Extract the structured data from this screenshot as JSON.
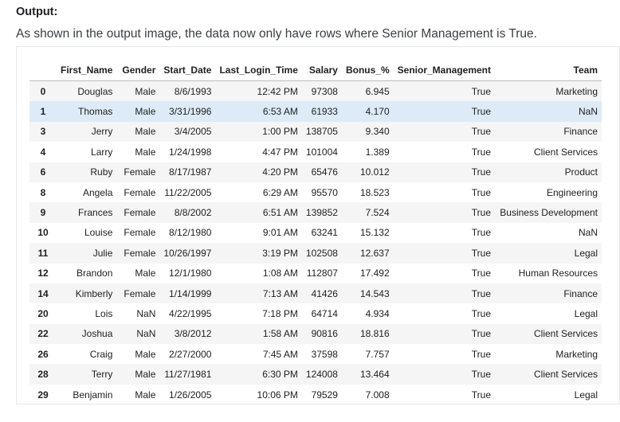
{
  "heading": "Output:",
  "description": "As shown in the output image, the data now only have rows where Senior Management is True.",
  "table": {
    "columns": [
      "",
      "First_Name",
      "Gender",
      "Start_Date",
      "Last_Login_Time",
      "Salary",
      "Bonus_%",
      "Senior_Management",
      "Team"
    ],
    "rows": [
      [
        "0",
        "Douglas",
        "Male",
        "8/6/1993",
        "12:42 PM",
        "97308",
        "6.945",
        "True",
        "Marketing"
      ],
      [
        "1",
        "Thomas",
        "Male",
        "3/31/1996",
        "6:53 AM",
        "61933",
        "4.170",
        "True",
        "NaN"
      ],
      [
        "3",
        "Jerry",
        "Male",
        "3/4/2005",
        "1:00 PM",
        "138705",
        "9.340",
        "True",
        "Finance"
      ],
      [
        "4",
        "Larry",
        "Male",
        "1/24/1998",
        "4:47 PM",
        "101004",
        "1.389",
        "True",
        "Client Services"
      ],
      [
        "6",
        "Ruby",
        "Female",
        "8/17/1987",
        "4:20 PM",
        "65476",
        "10.012",
        "True",
        "Product"
      ],
      [
        "8",
        "Angela",
        "Female",
        "11/22/2005",
        "6:29 AM",
        "95570",
        "18.523",
        "True",
        "Engineering"
      ],
      [
        "9",
        "Frances",
        "Female",
        "8/8/2002",
        "6:51 AM",
        "139852",
        "7.524",
        "True",
        "Business Development"
      ],
      [
        "10",
        "Louise",
        "Female",
        "8/12/1980",
        "9:01 AM",
        "63241",
        "15.132",
        "True",
        "NaN"
      ],
      [
        "11",
        "Julie",
        "Female",
        "10/26/1997",
        "3:19 PM",
        "102508",
        "12.637",
        "True",
        "Legal"
      ],
      [
        "12",
        "Brandon",
        "Male",
        "12/1/1980",
        "1:08 AM",
        "112807",
        "17.492",
        "True",
        "Human Resources"
      ],
      [
        "14",
        "Kimberly",
        "Female",
        "1/14/1999",
        "7:13 AM",
        "41426",
        "14.543",
        "True",
        "Finance"
      ],
      [
        "20",
        "Lois",
        "NaN",
        "4/22/1995",
        "7:18 PM",
        "64714",
        "4.934",
        "True",
        "Legal"
      ],
      [
        "22",
        "Joshua",
        "NaN",
        "3/8/2012",
        "1:58 AM",
        "90816",
        "18.816",
        "True",
        "Client Services"
      ],
      [
        "26",
        "Craig",
        "Male",
        "2/27/2000",
        "7:45 AM",
        "37598",
        "7.757",
        "True",
        "Marketing"
      ],
      [
        "28",
        "Terry",
        "Male",
        "11/27/1981",
        "6:30 PM",
        "124008",
        "13.464",
        "True",
        "Client Services"
      ],
      [
        "29",
        "Benjamin",
        "Male",
        "1/26/2005",
        "10:06 PM",
        "79529",
        "7.008",
        "True",
        "Legal"
      ]
    ]
  }
}
